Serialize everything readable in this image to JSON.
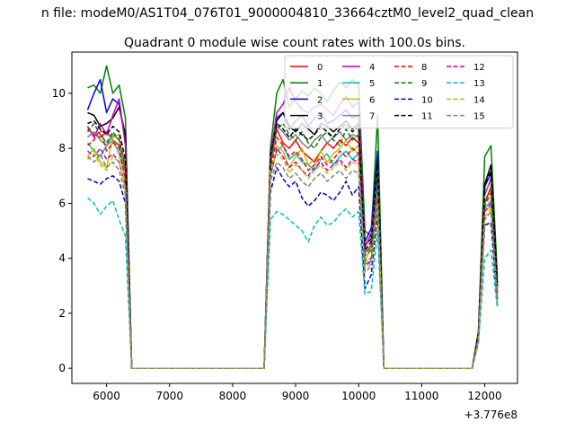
{
  "suptitle": "n file: modeM0/AS1T04_076T01_9000004810_33664cztM0_level2_quad_clean",
  "chart_data": {
    "type": "line",
    "title": "Quadrant 0 module wise count rates with 100.0s bins.",
    "xlabel": "",
    "ylabel": "",
    "offset_label": "+3.776e8",
    "x_offset": 377600000,
    "xlim": [
      5450,
      12520
    ],
    "ylim": [
      -0.55,
      11.5
    ],
    "xticks": [
      6000,
      7000,
      8000,
      9000,
      10000,
      11000,
      12000
    ],
    "yticks": [
      0,
      2,
      4,
      6,
      8,
      10
    ],
    "grid": false,
    "legend_placement": "upper-right",
    "legend_columns": 4,
    "x": [
      5700,
      5800,
      5900,
      6000,
      6100,
      6200,
      6300,
      6400,
      8500,
      8600,
      8700,
      8800,
      8900,
      9000,
      9100,
      9200,
      9300,
      9400,
      9500,
      9600,
      9700,
      9800,
      9900,
      10000,
      10100,
      10200,
      10300,
      10400,
      11800,
      11900,
      12000,
      12100,
      12200
    ],
    "series": [
      {
        "name": "0",
        "color": "#ff0000",
        "dash": false,
        "values": [
          8.7,
          8.5,
          8.4,
          8.6,
          8.3,
          8.1,
          7.2,
          0,
          0,
          7.4,
          8.7,
          8.2,
          8.0,
          8.3,
          7.9,
          7.7,
          7.5,
          7.9,
          8.2,
          8.0,
          8.3,
          8.1,
          8.4,
          8.2,
          4.2,
          4.4,
          6.6,
          0,
          0,
          1.2,
          6.0,
          6.6,
          2.7
        ]
      },
      {
        "name": "1",
        "color": "#008000",
        "dash": false,
        "values": [
          10.2,
          10.3,
          10.0,
          11.0,
          10.0,
          10.3,
          9.1,
          0,
          0,
          8.0,
          10.0,
          10.5,
          9.5,
          9.8,
          10.1,
          9.9,
          10.2,
          10.0,
          9.7,
          10.1,
          10.4,
          10.2,
          10.5,
          10.3,
          5.0,
          4.8,
          9.2,
          0,
          0,
          1.3,
          7.7,
          8.1,
          3.3
        ]
      },
      {
        "name": "2",
        "color": "#0000ff",
        "dash": false,
        "values": [
          9.4,
          10.0,
          10.5,
          9.3,
          9.8,
          9.6,
          8.3,
          0,
          0,
          7.6,
          9.1,
          9.3,
          8.7,
          9.0,
          9.2,
          8.8,
          9.1,
          9.3,
          8.9,
          9.0,
          9.2,
          9.4,
          9.1,
          9.2,
          4.6,
          5.1,
          7.9,
          0,
          0,
          1.2,
          6.6,
          7.1,
          3.0
        ]
      },
      {
        "name": "3",
        "color": "#000000",
        "dash": false,
        "values": [
          9.3,
          9.2,
          8.8,
          8.9,
          9.1,
          9.5,
          8.5,
          0,
          0,
          7.8,
          9.0,
          9.3,
          8.8,
          8.6,
          8.9,
          8.7,
          8.5,
          8.9,
          8.8,
          8.6,
          8.8,
          9.0,
          8.7,
          8.9,
          4.5,
          4.7,
          7.6,
          0,
          0,
          1.3,
          6.7,
          7.4,
          3.1
        ]
      },
      {
        "name": "4",
        "color": "#bf00bf",
        "dash": false,
        "values": [
          8.8,
          8.4,
          8.9,
          8.5,
          9.2,
          9.8,
          8.1,
          0,
          0,
          7.7,
          9.3,
          9.6,
          10.2,
          9.7,
          9.4,
          9.3,
          9.5,
          9.6,
          9.4,
          9.2,
          9.6,
          9.9,
          9.5,
          9.7,
          4.4,
          4.9,
          7.2,
          0,
          0,
          1.2,
          6.3,
          6.9,
          2.9
        ]
      },
      {
        "name": "5",
        "color": "#00bfbf",
        "dash": false,
        "values": [
          8.2,
          7.9,
          7.7,
          8.1,
          8.3,
          7.8,
          6.9,
          0,
          0,
          7.0,
          7.9,
          8.1,
          7.6,
          7.8,
          7.5,
          7.4,
          7.2,
          7.6,
          7.8,
          7.4,
          7.7,
          7.9,
          7.6,
          7.8,
          3.8,
          3.9,
          6.5,
          0,
          0,
          1.1,
          5.8,
          6.1,
          2.6
        ]
      },
      {
        "name": "6",
        "color": "#bfbf00",
        "dash": false,
        "values": [
          7.7,
          8.0,
          7.5,
          7.3,
          8.4,
          8.5,
          6.6,
          0,
          0,
          7.6,
          8.1,
          7.9,
          7.3,
          7.7,
          8.0,
          7.4,
          7.6,
          7.9,
          7.5,
          7.8,
          8.0,
          8.3,
          7.9,
          8.1,
          3.9,
          4.4,
          6.3,
          0,
          0,
          1.1,
          5.7,
          5.9,
          2.6
        ]
      },
      {
        "name": "7",
        "color": "#808080",
        "dash": false,
        "values": [
          8.4,
          8.6,
          8.3,
          8.1,
          8.5,
          8.3,
          7.4,
          0,
          0,
          7.4,
          8.8,
          8.6,
          8.3,
          8.5,
          8.2,
          8.0,
          8.3,
          8.5,
          8.2,
          8.4,
          8.6,
          8.3,
          8.5,
          8.4,
          4.2,
          4.5,
          7.3,
          0,
          0,
          1.2,
          6.4,
          6.8,
          2.8
        ]
      },
      {
        "name": "8",
        "color": "#ff0000",
        "dash": true,
        "values": [
          8.1,
          8.3,
          8.7,
          7.9,
          8.2,
          8.0,
          6.9,
          0,
          0,
          7.2,
          8.4,
          8.1,
          7.7,
          7.9,
          7.6,
          7.2,
          7.4,
          7.7,
          7.4,
          7.6,
          7.9,
          7.7,
          8.0,
          7.8,
          3.9,
          4.0,
          6.1,
          0,
          0,
          1.1,
          5.9,
          6.4,
          2.5
        ]
      },
      {
        "name": "9",
        "color": "#008000",
        "dash": true,
        "values": [
          8.6,
          8.9,
          8.5,
          8.2,
          8.6,
          8.3,
          7.3,
          0,
          0,
          7.5,
          8.7,
          8.9,
          8.5,
          8.3,
          8.6,
          8.2,
          8.0,
          8.4,
          8.6,
          8.3,
          8.1,
          8.7,
          8.3,
          8.5,
          4.1,
          4.3,
          7.0,
          0,
          0,
          1.2,
          6.1,
          6.5,
          2.7
        ]
      },
      {
        "name": "10",
        "color": "#0000bf",
        "dash": true,
        "values": [
          6.9,
          6.8,
          6.7,
          6.9,
          7.0,
          6.8,
          6.0,
          0,
          0,
          6.4,
          7.3,
          6.9,
          6.6,
          6.8,
          6.2,
          5.9,
          6.1,
          6.4,
          6.3,
          6.1,
          6.4,
          6.8,
          6.3,
          6.6,
          2.9,
          3.4,
          5.6,
          0,
          0,
          1.0,
          5.2,
          5.3,
          2.3
        ]
      },
      {
        "name": "11",
        "color": "#000000",
        "dash": true,
        "values": [
          8.9,
          9.0,
          8.7,
          8.5,
          8.8,
          8.6,
          7.6,
          0,
          0,
          7.7,
          8.9,
          8.7,
          8.4,
          8.7,
          8.5,
          8.3,
          8.5,
          8.8,
          8.6,
          8.4,
          8.7,
          8.9,
          8.6,
          8.8,
          4.3,
          4.6,
          7.4,
          0,
          0,
          1.3,
          6.6,
          7.2,
          3.0
        ]
      },
      {
        "name": "12",
        "color": "#bf00bf",
        "dash": true,
        "values": [
          7.9,
          7.7,
          8.0,
          7.6,
          7.8,
          7.5,
          6.6,
          0,
          0,
          7.0,
          8.0,
          7.7,
          7.3,
          7.5,
          7.2,
          7.0,
          7.3,
          7.5,
          7.2,
          7.4,
          7.6,
          7.3,
          7.6,
          7.5,
          3.7,
          3.9,
          6.2,
          0,
          0,
          1.1,
          5.7,
          6.0,
          2.5
        ]
      },
      {
        "name": "13",
        "color": "#00bfbf",
        "dash": true,
        "values": [
          6.2,
          6.0,
          5.6,
          5.9,
          6.1,
          5.4,
          4.8,
          0,
          0,
          5.4,
          5.7,
          5.6,
          5.4,
          5.2,
          5.0,
          4.6,
          5.2,
          5.5,
          5.2,
          5.3,
          5.6,
          5.8,
          5.5,
          5.7,
          2.7,
          2.8,
          5.0,
          0,
          0,
          0.9,
          4.0,
          4.3,
          2.2
        ]
      },
      {
        "name": "14",
        "color": "#bfbf00",
        "dash": true,
        "values": [
          7.6,
          7.8,
          7.4,
          7.2,
          7.7,
          7.5,
          6.5,
          0,
          0,
          7.2,
          7.8,
          7.6,
          7.1,
          7.4,
          7.2,
          6.9,
          7.2,
          7.4,
          7.1,
          7.3,
          7.5,
          7.2,
          7.5,
          7.4,
          3.6,
          3.8,
          6.0,
          0,
          0,
          1.0,
          5.5,
          5.8,
          2.4
        ]
      },
      {
        "name": "15",
        "color": "#808080",
        "dash": true,
        "values": [
          7.7,
          7.5,
          7.8,
          7.3,
          7.5,
          7.2,
          6.3,
          0,
          0,
          6.8,
          7.5,
          7.3,
          6.9,
          7.1,
          6.8,
          6.6,
          6.9,
          7.1,
          6.8,
          7.0,
          7.2,
          6.9,
          7.2,
          7.1,
          3.5,
          3.7,
          5.9,
          0,
          0,
          1.0,
          5.4,
          5.7,
          2.4
        ]
      }
    ]
  }
}
